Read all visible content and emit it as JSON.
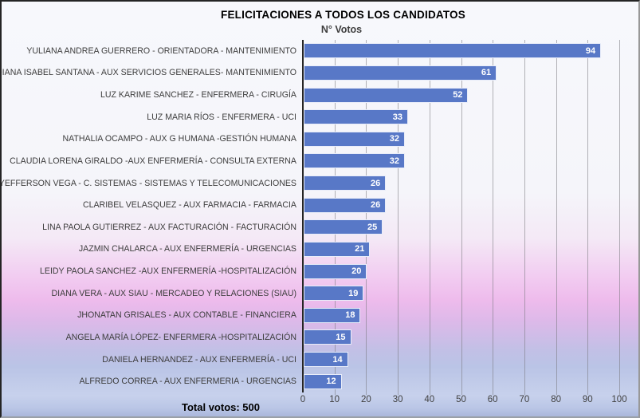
{
  "chart": {
    "title": "FELICITACIONES A TODOS LOS CANDIDATOS",
    "series_name": "N° Votos",
    "total_label": "Total votos: 500"
  },
  "chart_data": {
    "type": "bar",
    "orientation": "horizontal",
    "title": "FELICITACIONES A TODOS LOS CANDIDATOS",
    "series_name": "N° Votos",
    "categories": [
      "YULIANA ANDREA GUERRERO - ORIENTADORA - MANTENIMIENTO",
      "DIANA ISABEL SANTANA - AUX SERVICIOS GENERALES- MANTENIMIENTO",
      "LUZ KARIME SANCHEZ - ENFERMERA - CIRUGÍA",
      "LUZ MARIA RÍOS - ENFERMERA - UCI",
      "NATHALIA OCAMPO - AUX G HUMANA -GESTIÓN HUMANA",
      "CLAUDIA LORENA GIRALDO -AUX ENFERMERÍA - CONSULTA EXTERNA",
      "YEFFERSON VEGA - C. SISTEMAS - SISTEMAS Y TELECOMUNICACIONES",
      "CLARIBEL VELASQUEZ - AUX FARMACIA - FARMACIA",
      "LINA PAOLA GUTIERREZ - AUX FACTURACIÓN - FACTURACIÓN",
      "JAZMIN CHALARCA - AUX ENFERMERÍA - URGENCIAS",
      "LEIDY PAOLA SANCHEZ -AUX ENFERMERÍA -HOSPITALIZACIÓN",
      "DIANA VERA - AUX SIAU - MERCADEO Y RELACIONES (SIAU)",
      "JHONATAN GRISALES - AUX CONTABLE - FINANCIERA",
      "ANGELA MARÍA LÓPEZ- ENFERMERA -HOSPITALIZACIÓN",
      "DANIELA HERNANDEZ - AUX ENFERMERÍA - UCI",
      "ALFREDO CORREA - AUX ENFERMERIA - URGENCIAS"
    ],
    "values": [
      94,
      61,
      52,
      33,
      32,
      32,
      26,
      26,
      25,
      21,
      20,
      19,
      18,
      15,
      14,
      12
    ],
    "xlim": [
      0,
      100
    ],
    "x_ticks": [
      0,
      10,
      20,
      30,
      40,
      50,
      60,
      70,
      80,
      90,
      100
    ],
    "grid": true,
    "legend": "none",
    "bar_color": "#5878c7",
    "value_label_style": "inside-end white bold",
    "total_votes": 500,
    "total_label": "Total votos: 500"
  }
}
